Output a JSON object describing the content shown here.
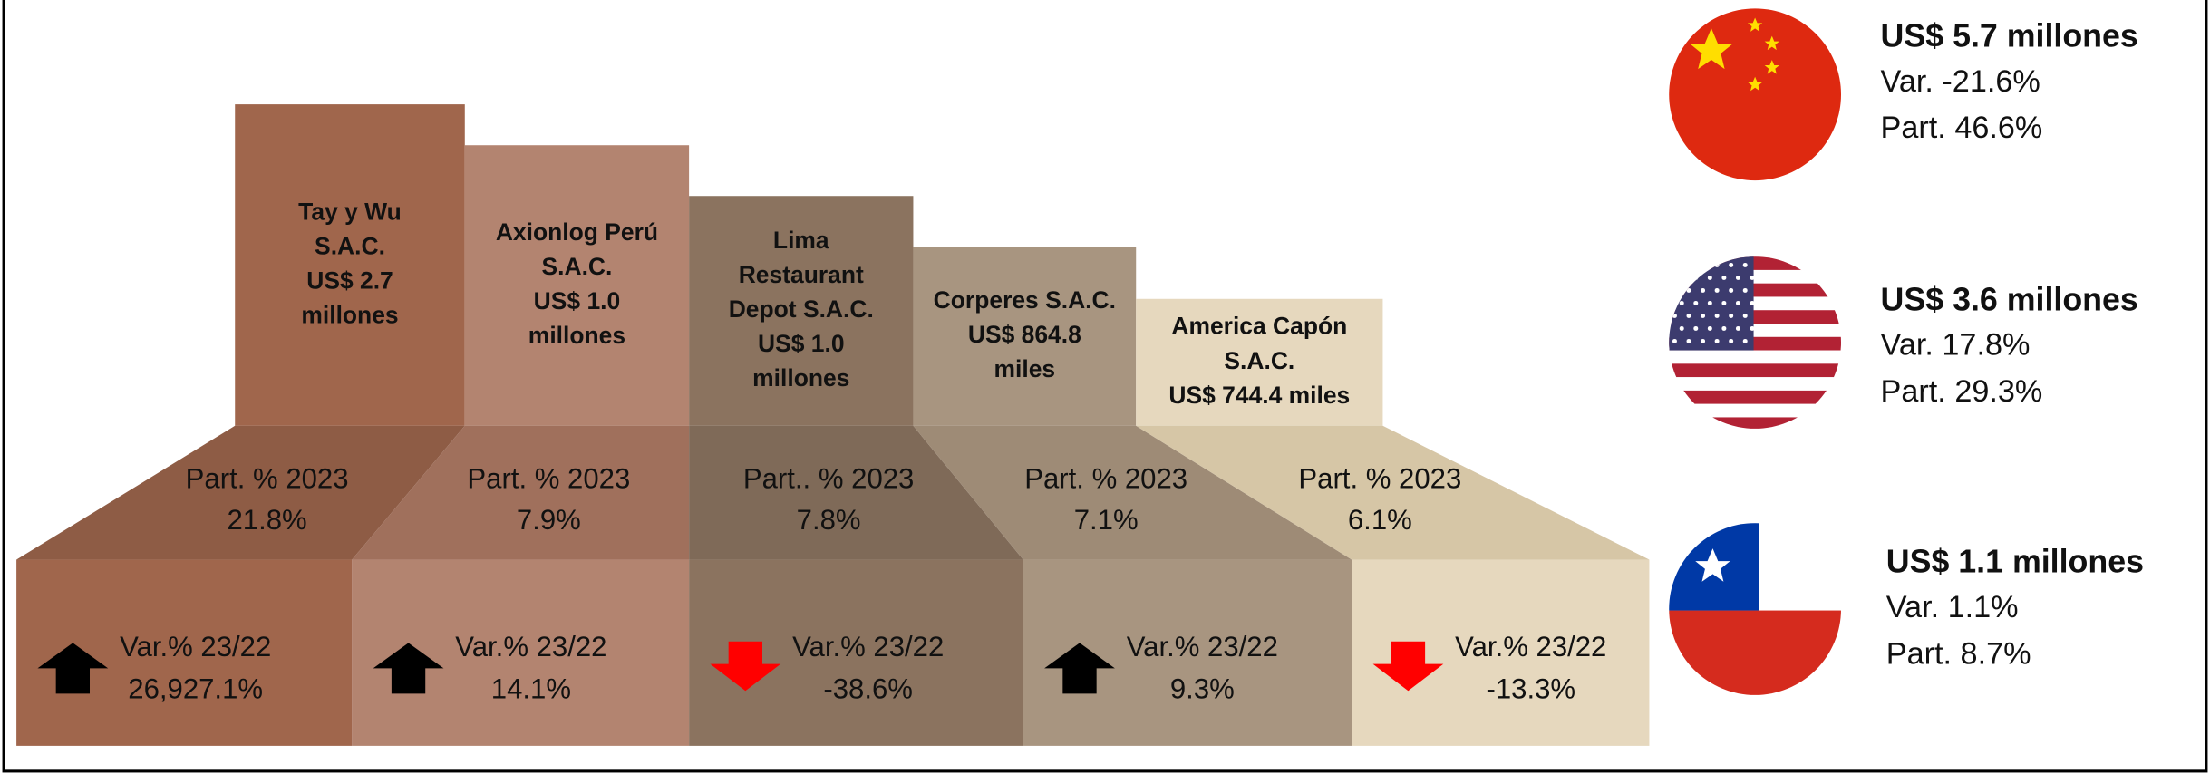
{
  "companies": [
    {
      "lines": [
        "Tay y Wu",
        "S.A.C.",
        "US$ 2.7",
        "millones"
      ],
      "part_label": "Part. % 2023",
      "part": "21.8%",
      "var_label": "Var.% 23/22",
      "var": "26,927.1%",
      "trend": "up"
    },
    {
      "lines": [
        "Axionlog Perú",
        "S.A.C.",
        "US$ 1.0",
        "millones"
      ],
      "part_label": "Part. % 2023",
      "part": "7.9%",
      "var_label": "Var.% 23/22",
      "var": "14.1%",
      "trend": "up"
    },
    {
      "lines": [
        "Lima",
        "Restaurant",
        "Depot S.A.C.",
        "US$ 1.0",
        "millones"
      ],
      "part_label": "Part.. % 2023",
      "part": "7.8%",
      "var_label": "Var.% 23/22",
      "var": "-38.6%",
      "trend": "down"
    },
    {
      "lines": [
        "Corperes S.A.C.",
        "US$ 864.8",
        "miles"
      ],
      "part_label": "Part. % 2023",
      "part": "7.1%",
      "var_label": "Var.% 23/22",
      "var": "9.3%",
      "trend": "up"
    },
    {
      "lines": [
        "America Capón",
        "S.A.C.",
        "US$ 744.4 miles"
      ],
      "part_label": "Part. % 2023",
      "part": "6.1%",
      "var_label": "Var.% 23/22",
      "var": "-13.3%",
      "trend": "down"
    }
  ],
  "countries": [
    {
      "amount": "US$ 5.7 millones",
      "var": "Var. -21.6%",
      "part": "Part. 46.6%"
    },
    {
      "amount": "US$ 3.6 millones",
      "var": "Var. 17.8%",
      "part": "Part. 29.3%"
    },
    {
      "amount": "US$ 1.1 millones",
      "var": "Var. 1.1%",
      "part": "Part. 8.7%"
    }
  ]
}
